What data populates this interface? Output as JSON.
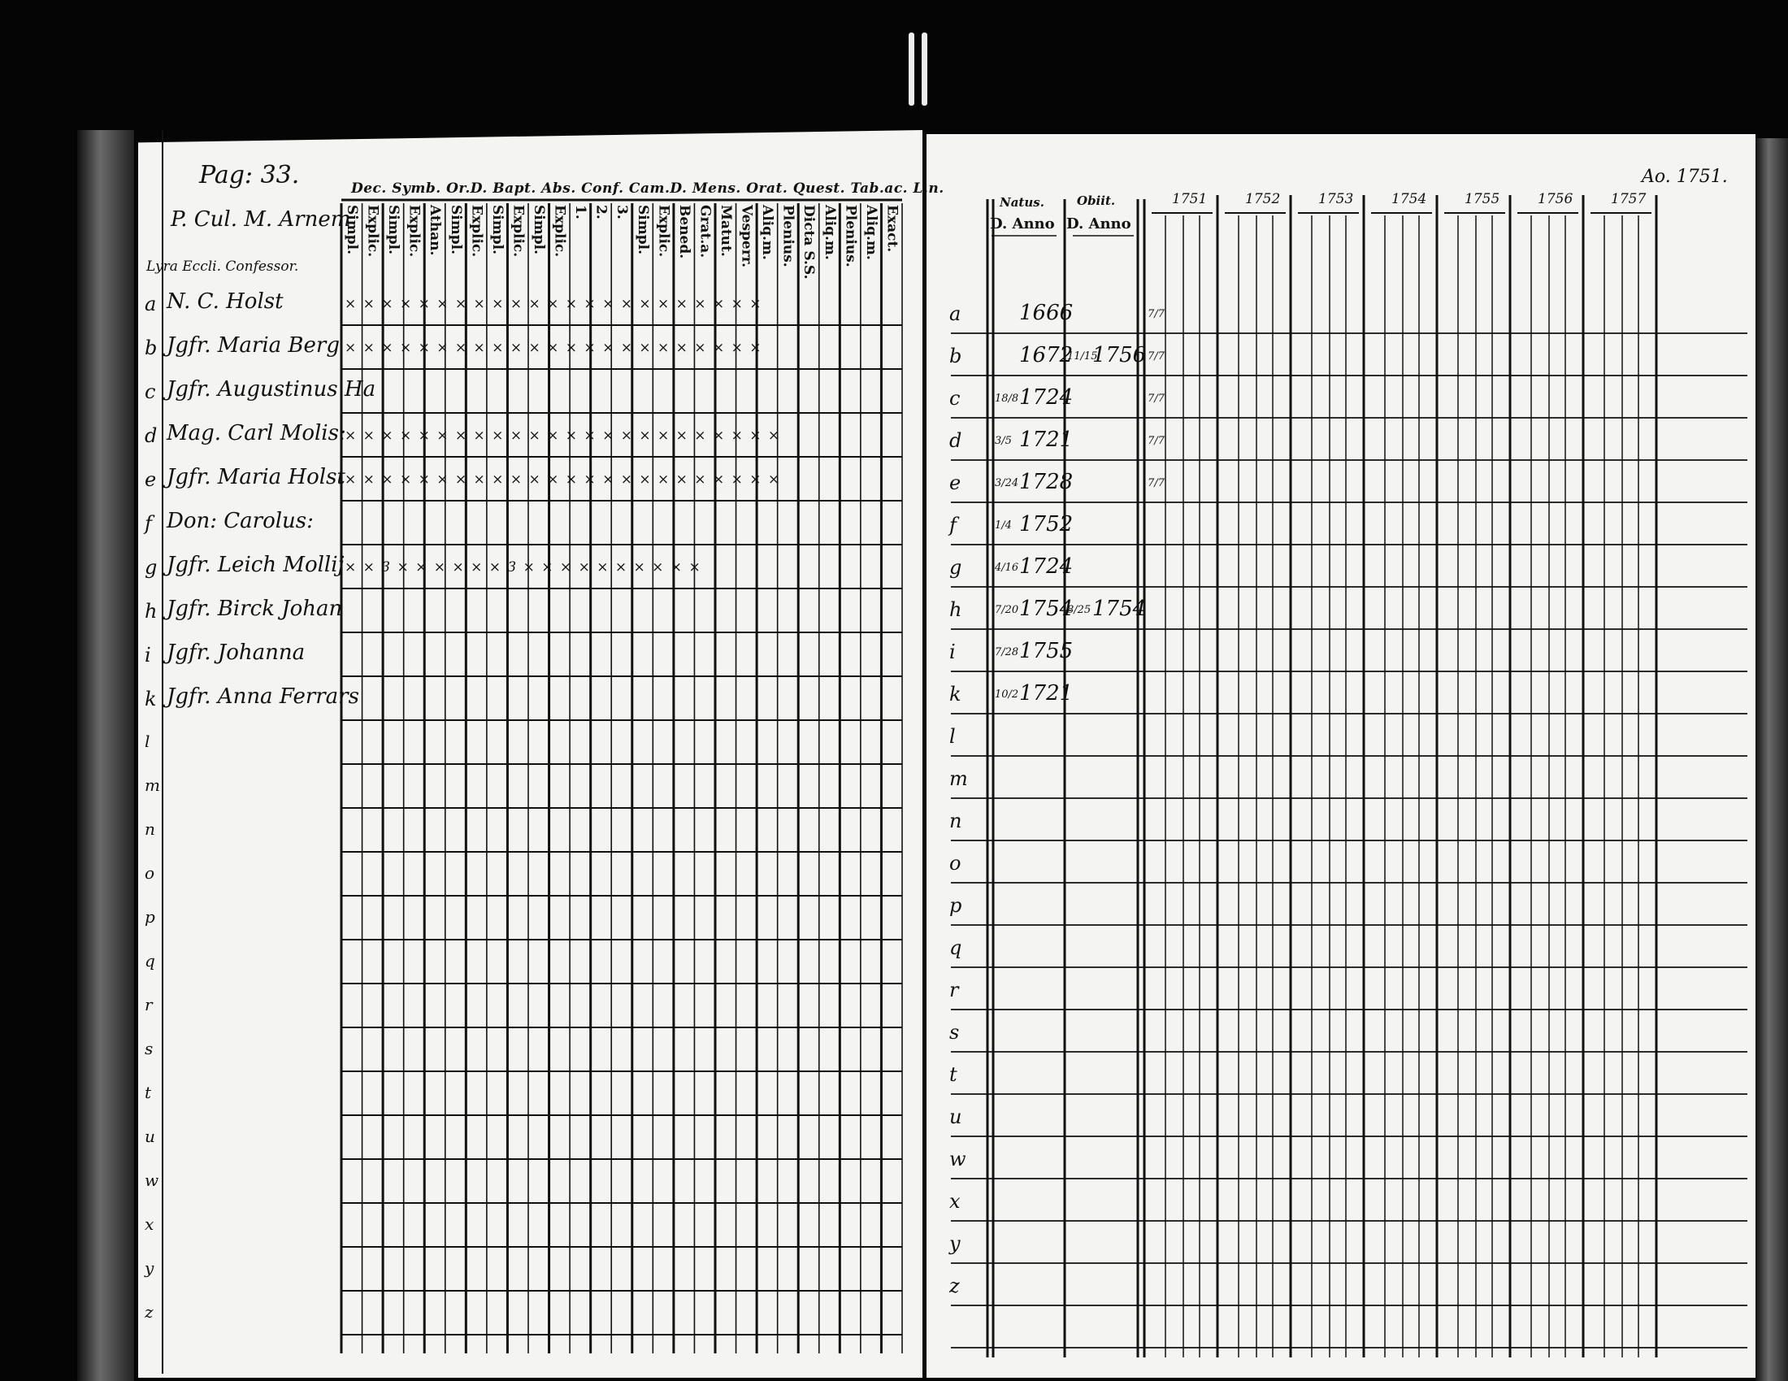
{
  "left": {
    "page_label": "Pag: 33.",
    "heading_lines": [
      "P. Cul. M. Arnem",
      "Lyra Eccli. Confessor."
    ],
    "column_groups": "Dec. Symb. Or.D. Bapt. Abs. Conf. Cam.D. Mens. Orat. Quest. Tab.ac. L.n.",
    "columns": [
      "Simpl.",
      "Explic.",
      "Simpl.",
      "Explic.",
      "Athan.",
      "Simpl.",
      "Explic.",
      "Simpl.",
      "Explic.",
      "Simpl.",
      "Explic.",
      "1.",
      "2.",
      "3.",
      "Simpl.",
      "Explic.",
      "Bened.",
      "Grat.a.",
      "Matut.",
      "Vesperr.",
      "Aliq.m.",
      "Plenius.",
      "Dicta S.S.",
      "Aliq.m.",
      "Plenius.",
      "Aliq.m.",
      "Exact."
    ],
    "rows": [
      {
        "letter": "a",
        "name": "N. C. Holst",
        "marks": "× × × × × × × × × × × × × × × × × × × ×  ×   × ×"
      },
      {
        "letter": "b",
        "name": "Jgfr. Maria Berg",
        "marks": "× × × × × × × × × × × × × × × × × × × ×   ×  × ×"
      },
      {
        "letter": "c",
        "name": "Jgfr. Augustinus Ha",
        "marks": ""
      },
      {
        "letter": "d",
        "name": "Mag. Carl Molis:",
        "marks": "× × × × × × × × × × × × × × × × × × × ×  ×  × × ×"
      },
      {
        "letter": "e",
        "name": "Jgfr. Maria Holst",
        "marks": "× × × × × × × × × × × × × × × × × × × × ×   × × ×"
      },
      {
        "letter": "f",
        "name": "Don: Carolus:",
        "marks": ""
      },
      {
        "letter": "g",
        "name": "Jgfr. Leich Mollij",
        "marks": "× ×   3   × ×  × ×  × ×   3   × ×  × ×  × ×  ×   × × ×"
      },
      {
        "letter": "h",
        "name": "Jgfr. Birck Johan",
        "marks": ""
      },
      {
        "letter": "i",
        "name": "Jgfr. Johanna",
        "marks": ""
      },
      {
        "letter": "k",
        "name": "Jgfr. Anna Ferrars",
        "marks": ""
      }
    ],
    "margin_letters": [
      "l",
      "m",
      "n",
      "o",
      "p",
      "q",
      "r",
      "s",
      "t",
      "u",
      "w",
      "x",
      "y",
      "z"
    ]
  },
  "right": {
    "corner_note": "Ao. 1751.",
    "natus_header": "Natus.",
    "obiit_header": "Obiit.",
    "day_year_label": "D. Anno",
    "years": [
      "1751",
      "1752",
      "1753",
      "1754",
      "1755",
      "1756",
      "1757"
    ],
    "letters": [
      "a",
      "b",
      "c",
      "d",
      "e",
      "f",
      "g",
      "h",
      "i",
      "k",
      "l",
      "m",
      "n",
      "o",
      "p",
      "q",
      "r",
      "s",
      "t",
      "u",
      "w",
      "x",
      "y",
      "z"
    ],
    "entries": [
      {
        "natus_day": "",
        "natus_year": "1666",
        "obiit_day": "",
        "obiit_year": "",
        "y1751": "7/7"
      },
      {
        "natus_day": "",
        "natus_year": "1672",
        "obiit_day": "11/15",
        "obiit_year": "1756",
        "y1751": "7/7"
      },
      {
        "natus_day": "18/8",
        "natus_year": "1724",
        "obiit_day": "",
        "obiit_year": "",
        "y1751": "7/7"
      },
      {
        "natus_day": "3/5",
        "natus_year": "1721",
        "obiit_day": "",
        "obiit_year": "",
        "y1751": "7/7"
      },
      {
        "natus_day": "3/24",
        "natus_year": "1728",
        "obiit_day": "",
        "obiit_year": "",
        "y1751": "7/7"
      },
      {
        "natus_day": "1/4",
        "natus_year": "1752",
        "obiit_day": "",
        "obiit_year": "",
        "y1751": ""
      },
      {
        "natus_day": "4/16",
        "natus_year": "1724",
        "obiit_day": "",
        "obiit_year": "",
        "y1751": ""
      },
      {
        "natus_day": "7/20",
        "natus_year": "1754",
        "obiit_day": "8/25",
        "obiit_year": "1754",
        "y1751": ""
      },
      {
        "natus_day": "7/28",
        "natus_year": "1755",
        "obiit_day": "",
        "obiit_year": "",
        "y1751": ""
      },
      {
        "natus_day": "10/2",
        "natus_year": "1721",
        "obiit_day": "",
        "obiit_year": "",
        "y1751": ""
      }
    ]
  },
  "colors": {
    "paper": "#f4f4f2",
    "ink": "#111111",
    "background": "#050505"
  }
}
